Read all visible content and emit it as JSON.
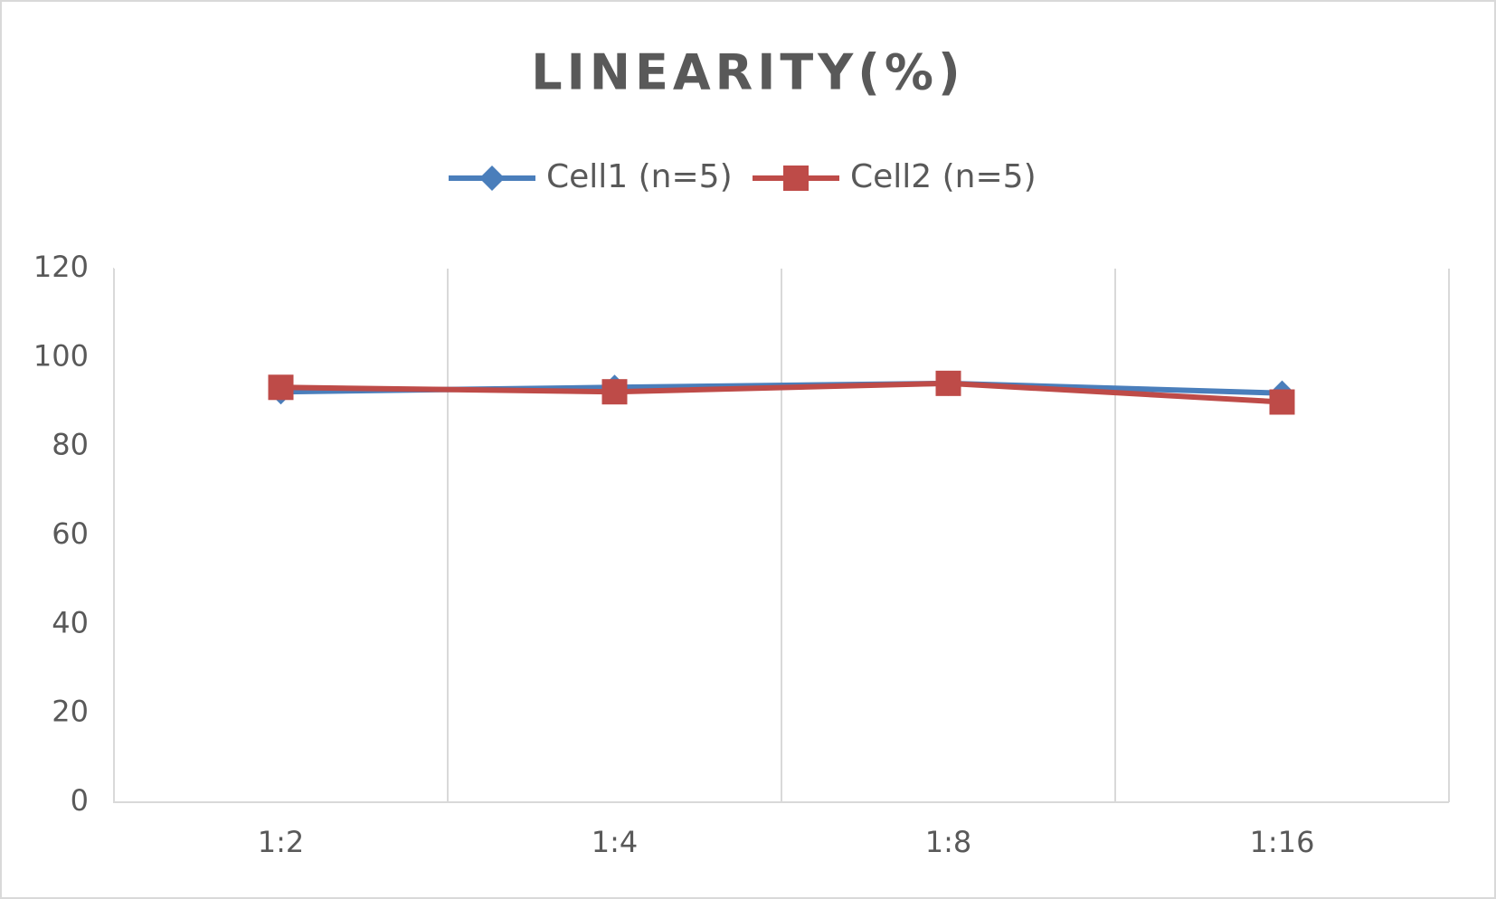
{
  "chart_data": {
    "type": "line",
    "title": "LINEARITY(%)",
    "categories": [
      "1:2",
      "1:4",
      "1:8",
      "1:16"
    ],
    "series": [
      {
        "name": "Cell1 (n=5)",
        "color": "#4a7ebb",
        "marker": "diamond",
        "values": [
          92.3,
          93.3,
          94.2,
          92
        ]
      },
      {
        "name": "Cell2 (n=5)",
        "color": "#be4b48",
        "marker": "square",
        "values": [
          93.3,
          92.3,
          94.2,
          90
        ]
      }
    ],
    "ylim": [
      0,
      120
    ],
    "yticks": [
      0,
      20,
      40,
      60,
      80,
      100,
      120
    ],
    "legend": "top"
  }
}
